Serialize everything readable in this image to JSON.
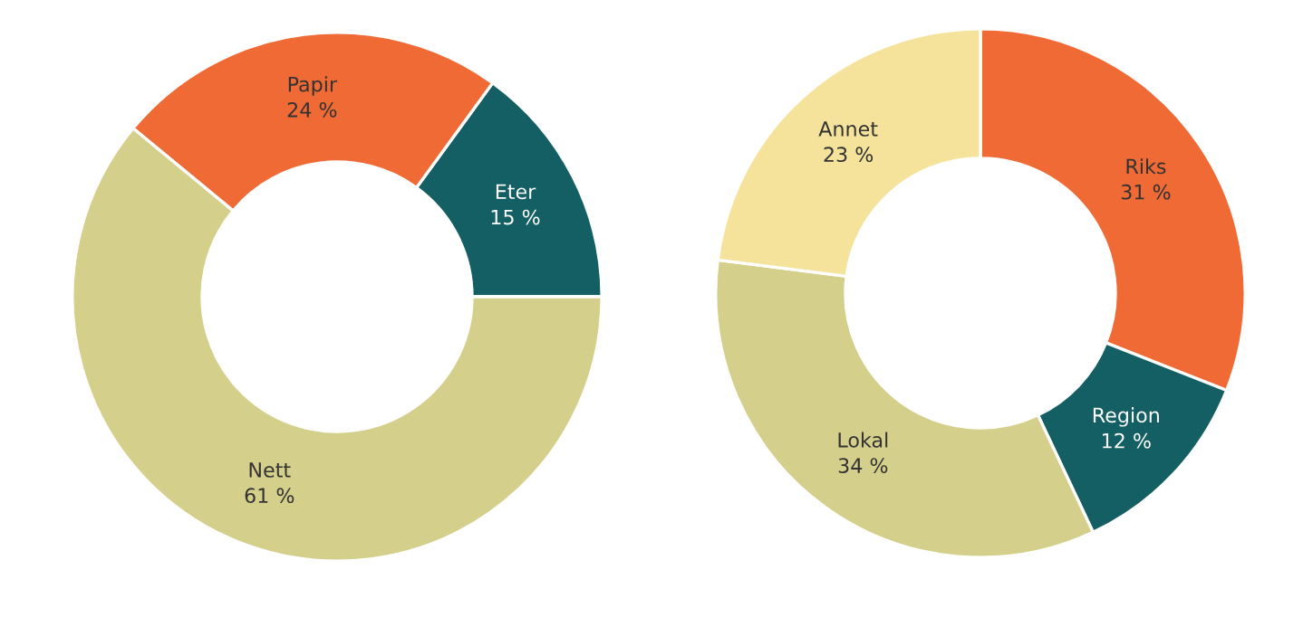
{
  "chart_data": [
    {
      "type": "donut",
      "categories": [
        "Eter",
        "Papir",
        "Nett"
      ],
      "values": [
        15,
        24,
        61
      ],
      "value_labels": [
        "15 %",
        "24 %",
        "61 %"
      ],
      "colors": [
        "#135f63",
        "#f06a35",
        "#d5cf8c"
      ]
    },
    {
      "type": "donut",
      "categories": [
        "Riks",
        "Region",
        "Lokal",
        "Annet"
      ],
      "values": [
        31,
        12,
        34,
        23
      ],
      "value_labels": [
        "31 %",
        "12 %",
        "34 %",
        "23 %"
      ],
      "colors": [
        "#f06a35",
        "#135f63",
        "#d5cf8c",
        "#f5e39b"
      ]
    }
  ]
}
